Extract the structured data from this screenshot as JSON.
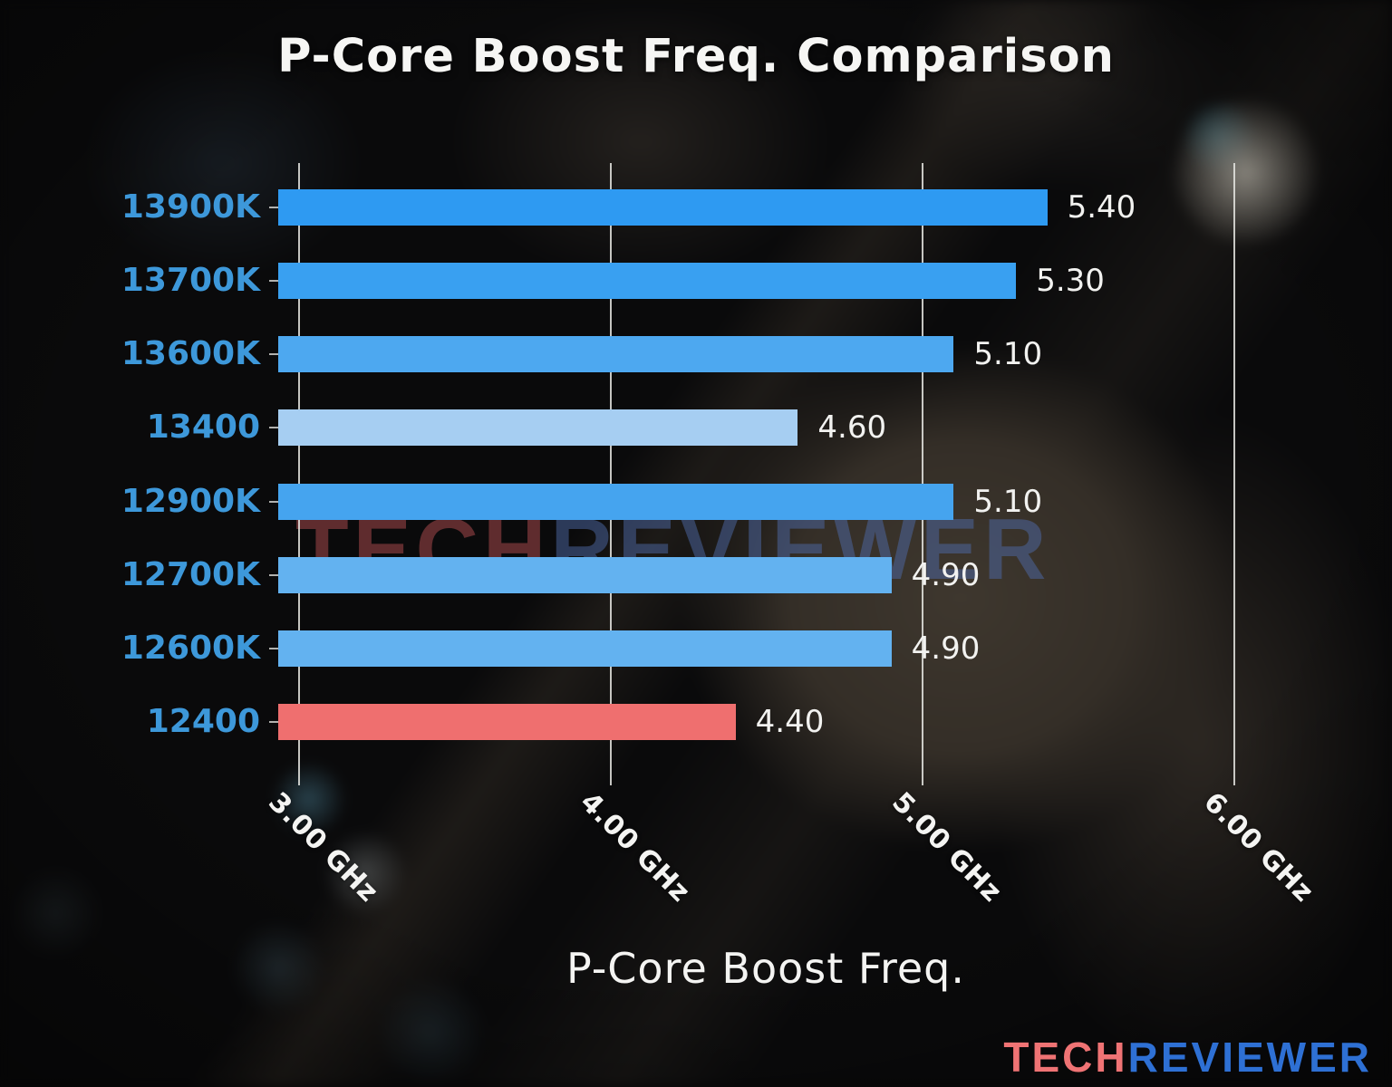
{
  "title": "P-Core Boost Freq. Comparison",
  "chart_data": {
    "type": "bar",
    "orientation": "horizontal",
    "title": "P-Core Boost Freq. Comparison",
    "xlabel": "P-Core Boost Freq.",
    "categories": [
      "13900K",
      "13700K",
      "13600K",
      "13400",
      "12900K",
      "12700K",
      "12600K",
      "12400"
    ],
    "values": [
      5.4,
      5.3,
      5.1,
      4.6,
      5.1,
      4.9,
      4.9,
      4.4
    ],
    "value_labels": [
      "5.40",
      "5.30",
      "5.10",
      "4.60",
      "5.10",
      "4.90",
      "4.90",
      "4.40"
    ],
    "unit": "GHz",
    "bar_colors": [
      "#2E9AF2",
      "#39A0F1",
      "#4DA8F0",
      "#A6CEF2",
      "#45A4EF",
      "#63B2F0",
      "#63B2F0",
      "#EF6F6F"
    ],
    "category_label_color": "#3D98DA",
    "value_label_color": "#F2F2F0",
    "x_ticks": [
      {
        "value": 3.0,
        "label": "3.00 GHz"
      },
      {
        "value": 4.0,
        "label": "4.00 GHz"
      },
      {
        "value": 5.0,
        "label": "5.00 GHz"
      },
      {
        "value": 6.0,
        "label": "6.00 GHz"
      }
    ],
    "xlim": [
      2.933,
      6.061
    ],
    "grid": true,
    "legend": null
  },
  "watermark": {
    "tech": "TECH",
    "reviewer": "REVIEWER"
  },
  "logo": {
    "tech": "TECH",
    "reviewer": "REVIEWER",
    "tech_color": "#EF7374",
    "reviewer_color": "#2E70D4"
  }
}
